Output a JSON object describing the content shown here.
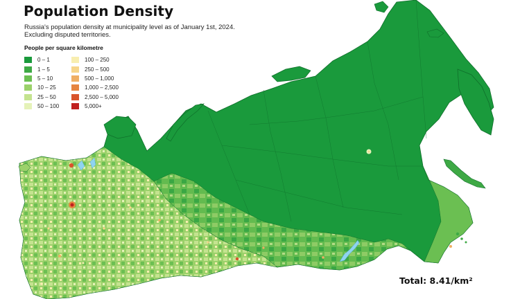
{
  "map": {
    "title": "Population Density",
    "subtitle_lines": [
      "Russia's population density at municipality level as of January 1st, 2024.",
      "Excluding disputed territories."
    ],
    "total": "Total: 8.41/km²"
  },
  "legend": {
    "title": "People per square kilometre",
    "items": [
      {
        "label": "0 – 1",
        "color": "#1a9a3c"
      },
      {
        "label": "1 – 5",
        "color": "#3ea945"
      },
      {
        "label": "5 – 10",
        "color": "#6bbf52"
      },
      {
        "label": "10 – 25",
        "color": "#9bd16a"
      },
      {
        "label": "25 – 50",
        "color": "#c4e38f"
      },
      {
        "label": "50 – 100",
        "color": "#e5f2b8"
      },
      {
        "label": "100 – 250",
        "color": "#f8eeb0"
      },
      {
        "label": "250 – 500",
        "color": "#f6d58a"
      },
      {
        "label": "500 – 1,000",
        "color": "#efae63"
      },
      {
        "label": "1,000 – 2,500",
        "color": "#e6843f"
      },
      {
        "label": "2,500 – 5,000",
        "color": "#d9542b"
      },
      {
        "label": "5,000+",
        "color": "#c0201f"
      }
    ]
  },
  "colors": {
    "sea": "#ffffff",
    "border": "#0f6e2a",
    "lake": "#8fd3f0"
  }
}
